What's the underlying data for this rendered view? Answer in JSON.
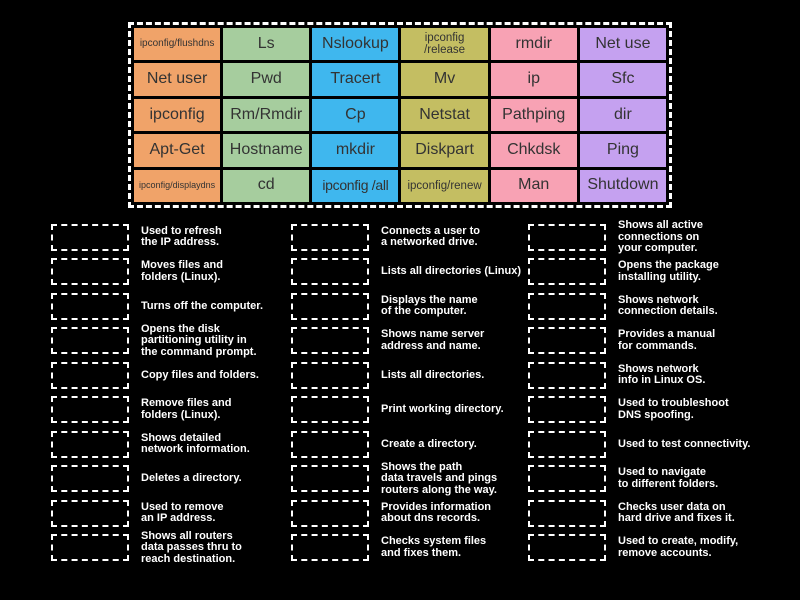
{
  "colors": {
    "background": "#000000",
    "dash_border": "#ffffff",
    "tile_text": "#333333",
    "definition_text": "#ffffff"
  },
  "board": {
    "column_colors": [
      "#f0a369",
      "#a6cd9e",
      "#3fb7ee",
      "#c4be62",
      "#f8a2b4",
      "#c5a1f0"
    ],
    "rows": [
      [
        "ipconfig/flushdns",
        "Ls",
        "Nslookup",
        "ipconfig\n/release",
        "rmdir",
        "Net use"
      ],
      [
        "Net user",
        "Pwd",
        "Tracert",
        "Mv",
        "ip",
        "Sfc"
      ],
      [
        "ipconfig",
        "Rm/Rmdir",
        "Cp",
        "Netstat",
        "Pathping",
        "dir"
      ],
      [
        "Apt-Get",
        "Hostname",
        "mkdir",
        "Diskpart",
        "Chkdsk",
        "Ping"
      ],
      [
        "ipconfig/displaydns",
        "cd",
        "ipconfig /all",
        "ipconfig/renew",
        "Man",
        "Shutdown"
      ]
    ]
  },
  "definitions": {
    "columns": [
      [
        "Used to refresh\nthe IP address.",
        "Moves files and\nfolders (Linux).",
        "Turns off the computer.",
        "Opens the disk\npartitioning utility in\nthe command prompt.",
        "Copy files and folders.",
        "Remove files and\nfolders (Linux).",
        "Shows detailed\nnetwork information.",
        "Deletes a directory.",
        "Used to remove\nan IP address.",
        "Shows all routers\ndata passes thru to\nreach destination."
      ],
      [
        "Connects a user to\na networked drive.",
        "Lists all directories (Linux)",
        "Displays the name\nof the computer.",
        "Shows name server\naddress and name.",
        "Lists all directories.",
        "Print working directory.",
        "Create a directory.",
        "Shows the path\ndata travels and pings\nrouters along the way.",
        "Provides information\nabout dns records.",
        "Checks system files\nand fixes them."
      ],
      [
        "Shows all active\nconnections on\nyour computer.",
        "Opens the package\ninstalling utility.",
        "Shows network\nconnection details.",
        "Provides a manual\nfor commands.",
        "Shows network\ninfo in Linux OS.",
        "Used to troubleshoot\nDNS spoofing.",
        "Used to test connectivity.",
        "Used to navigate\nto different folders.",
        "Checks user data on\nhard drive and fixes it.",
        "Used to create, modify,\nremove accounts."
      ]
    ]
  }
}
